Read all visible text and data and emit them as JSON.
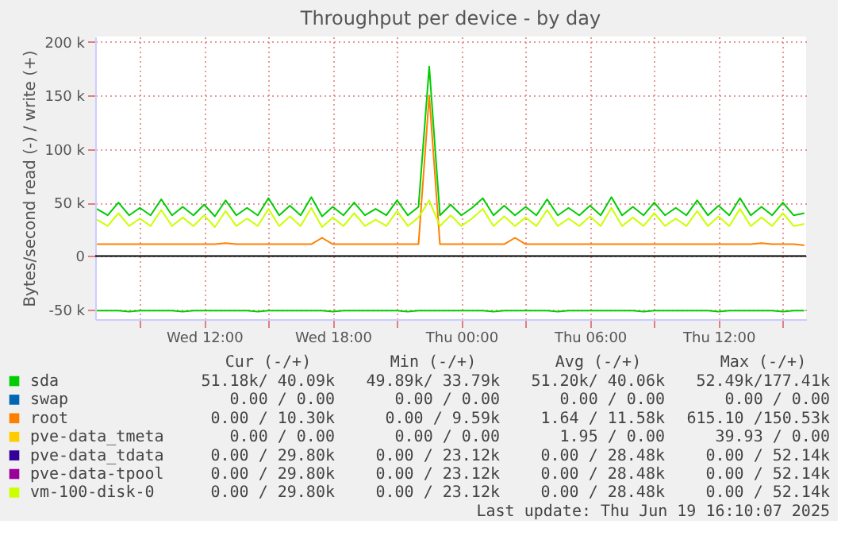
{
  "chart_data": {
    "type": "line",
    "title": "Throughput per device - by day",
    "ylabel": "Bytes/second read (-) / write (+)",
    "x": [
      "2025-06-18T07:00",
      "2025-06-18T07:30",
      "2025-06-18T08:00",
      "2025-06-18T08:30",
      "2025-06-18T09:00",
      "2025-06-18T09:30",
      "2025-06-18T10:00",
      "2025-06-18T10:30",
      "2025-06-18T11:00",
      "2025-06-18T11:30",
      "2025-06-18T12:00",
      "2025-06-18T12:30",
      "2025-06-18T13:00",
      "2025-06-18T13:30",
      "2025-06-18T14:00",
      "2025-06-18T14:30",
      "2025-06-18T15:00",
      "2025-06-18T15:30",
      "2025-06-18T16:00",
      "2025-06-18T16:30",
      "2025-06-18T17:00",
      "2025-06-18T17:30",
      "2025-06-18T18:00",
      "2025-06-18T18:30",
      "2025-06-18T19:00",
      "2025-06-18T19:30",
      "2025-06-18T20:00",
      "2025-06-18T20:30",
      "2025-06-18T21:00",
      "2025-06-18T21:30",
      "2025-06-18T22:00",
      "2025-06-18T22:30",
      "2025-06-18T23:00",
      "2025-06-18T23:30",
      "2025-06-19T00:00",
      "2025-06-19T00:30",
      "2025-06-19T01:00",
      "2025-06-19T01:30",
      "2025-06-19T02:00",
      "2025-06-19T02:30",
      "2025-06-19T03:00",
      "2025-06-19T03:30",
      "2025-06-19T04:00",
      "2025-06-19T04:30",
      "2025-06-19T05:00",
      "2025-06-19T05:30",
      "2025-06-19T06:00",
      "2025-06-19T06:30",
      "2025-06-19T07:00",
      "2025-06-19T07:30",
      "2025-06-19T08:00",
      "2025-06-19T08:30",
      "2025-06-19T09:00",
      "2025-06-19T09:30",
      "2025-06-19T10:00",
      "2025-06-19T10:30",
      "2025-06-19T11:00",
      "2025-06-19T11:30",
      "2025-06-19T12:00",
      "2025-06-19T12:30",
      "2025-06-19T13:00",
      "2025-06-19T13:30",
      "2025-06-19T14:00",
      "2025-06-19T14:30",
      "2025-06-19T15:00",
      "2025-06-19T15:30",
      "2025-06-19T16:00"
    ],
    "series": [
      {
        "name": "sda",
        "color": "#00cc00",
        "values": [
          44000,
          38000,
          50000,
          38000,
          45000,
          38000,
          53000,
          38000,
          46000,
          38000,
          48000,
          37000,
          52000,
          38000,
          45000,
          38000,
          54000,
          38000,
          47000,
          38000,
          55000,
          37000,
          46000,
          38000,
          50000,
          38000,
          44000,
          38000,
          52000,
          38000,
          46000,
          177000,
          38000,
          48000,
          38000,
          45000,
          54000,
          38000,
          47000,
          38000,
          46000,
          38000,
          53000,
          38000,
          45000,
          38000,
          47000,
          38000,
          55000,
          38000,
          46000,
          38000,
          50000,
          38000,
          45000,
          38000,
          52000,
          38000,
          47000,
          38000,
          54000,
          38000,
          46000,
          38000,
          50000,
          38000,
          40000
        ]
      },
      {
        "name": "swap",
        "color": "#0066b3",
        "values": [
          null,
          null,
          null,
          null,
          null,
          null,
          null,
          null,
          null,
          null,
          null,
          null,
          null,
          null,
          null,
          null,
          null,
          null,
          null,
          null,
          null,
          null,
          null,
          null,
          null,
          null,
          null,
          null,
          null,
          null,
          null,
          null,
          null,
          null,
          null,
          null,
          null,
          null,
          null,
          null,
          null,
          null,
          null,
          null,
          null,
          null,
          null,
          null,
          null,
          null,
          null,
          null,
          null,
          null,
          null,
          null,
          null,
          null,
          null,
          null,
          null,
          null,
          null,
          null,
          null,
          null,
          null
        ]
      },
      {
        "name": "root",
        "color": "#ff8000",
        "values": [
          11000,
          11000,
          11000,
          11000,
          11000,
          11000,
          11000,
          11000,
          11000,
          11000,
          11000,
          11000,
          12000,
          11000,
          11000,
          11000,
          11000,
          11000,
          11000,
          11000,
          11000,
          17000,
          11000,
          11000,
          11000,
          11000,
          11000,
          11000,
          11000,
          11000,
          11000,
          150000,
          11000,
          11000,
          11000,
          11000,
          11000,
          11000,
          11000,
          17000,
          11000,
          11000,
          11000,
          11000,
          11000,
          11000,
          11000,
          11000,
          11000,
          11000,
          11000,
          11000,
          11000,
          11000,
          11000,
          11000,
          11000,
          11000,
          11000,
          11000,
          11000,
          11000,
          12000,
          11000,
          11000,
          11000,
          10000
        ]
      },
      {
        "name": "pve-data_tmeta",
        "color": "#ffcc00",
        "values": [
          null,
          null,
          null,
          null,
          null,
          null,
          null,
          null,
          null,
          null,
          null,
          null,
          null,
          null,
          null,
          null,
          null,
          null,
          null,
          null,
          null,
          null,
          null,
          null,
          null,
          null,
          null,
          null,
          null,
          null,
          null,
          null,
          null,
          null,
          null,
          null,
          null,
          null,
          null,
          null,
          null,
          null,
          null,
          null,
          null,
          null,
          null,
          null,
          null,
          null,
          null,
          null,
          null,
          null,
          null,
          null,
          null,
          null,
          null,
          null,
          null,
          null,
          null,
          null,
          null,
          null,
          null
        ]
      },
      {
        "name": "pve-data_tdata",
        "color": "#330099",
        "values": [
          null,
          null,
          null,
          null,
          null,
          null,
          null,
          null,
          null,
          null,
          null,
          null,
          null,
          null,
          null,
          null,
          null,
          null,
          null,
          null,
          null,
          null,
          null,
          null,
          null,
          null,
          null,
          null,
          null,
          null,
          null,
          null,
          null,
          null,
          null,
          null,
          null,
          null,
          null,
          null,
          null,
          null,
          null,
          null,
          null,
          null,
          null,
          null,
          null,
          null,
          null,
          null,
          null,
          null,
          null,
          null,
          null,
          null,
          null,
          null,
          null,
          null,
          null,
          null,
          null,
          null,
          null
        ]
      },
      {
        "name": "pve-data-tpool",
        "color": "#990099",
        "values": [
          null,
          null,
          null,
          null,
          null,
          null,
          null,
          null,
          null,
          null,
          null,
          null,
          null,
          null,
          null,
          null,
          null,
          null,
          null,
          null,
          null,
          null,
          null,
          null,
          null,
          null,
          null,
          null,
          null,
          null,
          null,
          null,
          null,
          null,
          null,
          null,
          null,
          null,
          null,
          null,
          null,
          null,
          null,
          null,
          null,
          null,
          null,
          null,
          null,
          null,
          null,
          null,
          null,
          null,
          null,
          null,
          null,
          null,
          null,
          null,
          null,
          null,
          null,
          null,
          null,
          null,
          null
        ]
      },
      {
        "name": "vm-100-disk-0",
        "color": "#ccff00",
        "values": [
          34000,
          28000,
          40000,
          28000,
          35000,
          28000,
          43000,
          28000,
          36000,
          28000,
          38000,
          27000,
          42000,
          28000,
          35000,
          28000,
          44000,
          28000,
          37000,
          28000,
          45000,
          27000,
          36000,
          28000,
          40000,
          28000,
          34000,
          28000,
          42000,
          28000,
          36000,
          52000,
          28000,
          38000,
          28000,
          35000,
          44000,
          28000,
          37000,
          28000,
          36000,
          28000,
          43000,
          28000,
          35000,
          28000,
          37000,
          28000,
          45000,
          28000,
          36000,
          28000,
          40000,
          28000,
          35000,
          28000,
          42000,
          28000,
          37000,
          28000,
          44000,
          28000,
          36000,
          28000,
          40000,
          28000,
          30000
        ]
      },
      {
        "color": "#00cc00",
        "values": [
          -51000,
          -51000,
          -51000,
          -52000,
          -51000,
          -51000,
          -51000,
          -51000,
          -52000,
          -51000,
          -51000,
          -51000,
          -51000,
          -51000,
          -51000,
          -52000,
          -51000,
          -51000,
          -51000,
          -51000,
          -51000,
          -51000,
          -52000,
          -51000,
          -51000,
          -51000,
          -51000,
          -51000,
          -51000,
          -52000,
          -51000,
          -51000,
          -51000,
          -51000,
          -51000,
          -51000,
          -51000,
          -52000,
          -51000,
          -51000,
          -51000,
          -51000,
          -51000,
          -52000,
          -51000,
          -51000,
          -51000,
          -51000,
          -51000,
          -51000,
          -51000,
          -52000,
          -51000,
          -51000,
          -51000,
          -51000,
          -51000,
          -51000,
          -52000,
          -51000,
          -51000,
          -51000,
          -51000,
          -51000,
          -52000,
          -51000,
          -51000
        ]
      }
    ],
    "xlim": [
      "2025-06-18T06:55",
      "2025-06-19T16:05"
    ],
    "xticks": [
      {
        "value": "2025-06-18T09:00",
        "label": null
      },
      {
        "value": "2025-06-18T12:00",
        "label": "Wed 12:00"
      },
      {
        "value": "2025-06-18T15:00",
        "label": null
      },
      {
        "value": "2025-06-18T18:00",
        "label": "Wed 18:00"
      },
      {
        "value": "2025-06-18T21:00",
        "label": null
      },
      {
        "value": "2025-06-19T00:00",
        "label": "Thu 00:00"
      },
      {
        "value": "2025-06-19T03:00",
        "label": null
      },
      {
        "value": "2025-06-19T06:00",
        "label": "Thu 06:00"
      },
      {
        "value": "2025-06-19T09:00",
        "label": null
      },
      {
        "value": "2025-06-19T12:00",
        "label": "Thu 12:00"
      },
      {
        "value": "2025-06-19T15:00",
        "label": null
      }
    ],
    "ylim": [
      -59000,
      205000
    ],
    "yticks": [
      {
        "value": -50000,
        "label": "-50 k"
      },
      0,
      {
        "value": 50000,
        "label": "50 k"
      },
      {
        "value": 100000,
        "label": "100 k"
      },
      {
        "value": 150000,
        "label": "150 k"
      },
      {
        "value": 200000,
        "label": "200 k"
      }
    ],
    "ref_lines": [
      {
        "axis": "y",
        "value": 0,
        "color": "#000000"
      }
    ],
    "grid": true,
    "legend": "bottom",
    "line_style": "solid",
    "marker": "none",
    "annotations": [
      "Cur (-/+)",
      "Min (-/+)",
      "Avg (-/+)",
      "Max (-/+)",
      "51.18k/ 40.09k",
      "49.89k/ 33.79k",
      "51.20k/ 40.06k",
      "52.49k/177.41k",
      "0.00 /  0.00",
      "0.00 /  0.00",
      "0.00 /  0.00",
      "0.00 /  0.00",
      "0.00 / 10.30k",
      "0.00 /  9.59k",
      "1.64 / 11.58k",
      "615.10 /150.53k",
      "0.00 /  0.00",
      "0.00 /  0.00",
      "1.95 /  0.00",
      "39.93 /  0.00",
      "0.00 / 29.80k",
      "0.00 / 23.12k",
      "0.00 / 28.48k",
      "0.00 / 52.14k",
      "0.00 / 29.80k",
      "0.00 / 23.12k",
      "0.00 / 28.48k",
      "0.00 / 52.14k",
      "0.00 / 29.80k",
      "0.00 / 23.12k",
      "0.00 / 28.48k",
      "0.00 / 52.14k",
      "Last update: Thu Jun 19 16:10:07 2025"
    ]
  }
}
